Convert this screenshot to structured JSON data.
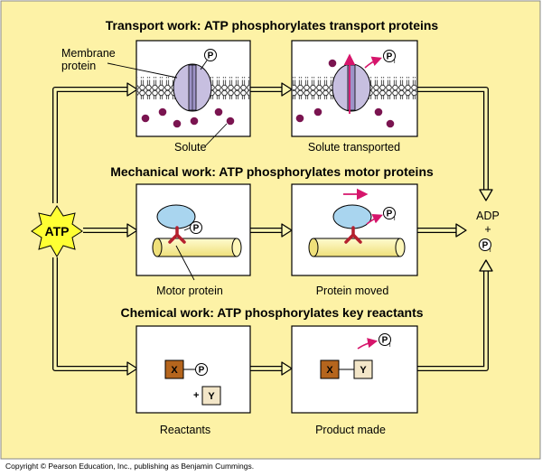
{
  "sections": {
    "transport": {
      "title": "Transport work: ATP phosphorylates transport proteins",
      "left_caption": "Solute",
      "right_caption": "Solute transported",
      "callout": [
        "Membrane",
        "protein"
      ]
    },
    "mechanical": {
      "title": "Mechanical work: ATP phosphorylates motor proteins",
      "left_caption": "Motor protein",
      "right_caption": "Protein moved"
    },
    "chemical": {
      "title": "Chemical work: ATP phosphorylates key reactants",
      "left_caption": "Reactants",
      "right_caption": "Product made",
      "reactant_x": "X",
      "reactant_y": "Y",
      "plus": "+"
    }
  },
  "atp_label": "ATP",
  "products": {
    "adp": "ADP",
    "plus": "+"
  },
  "phosphate": {
    "letter": "P",
    "subscript": "i"
  },
  "copyright": "Copyright © Pearson Education, Inc., publishing as Benjamin Cummings.",
  "colors": {
    "background": "#fdf2a6",
    "panel": "#ffffff",
    "arrow": "#fdf7b2",
    "atp_burst": "#ffff33",
    "membrane_protein": "#c7bfe0",
    "solute": "#7a1450",
    "motor_protein": "#a9d5ef",
    "cytoskeleton": "#fbf3a0",
    "motor_link": "#b4202e",
    "box_x": "#b5651d",
    "box_y": "#f3e6c8",
    "magenta_arrow": "#d6156b"
  }
}
